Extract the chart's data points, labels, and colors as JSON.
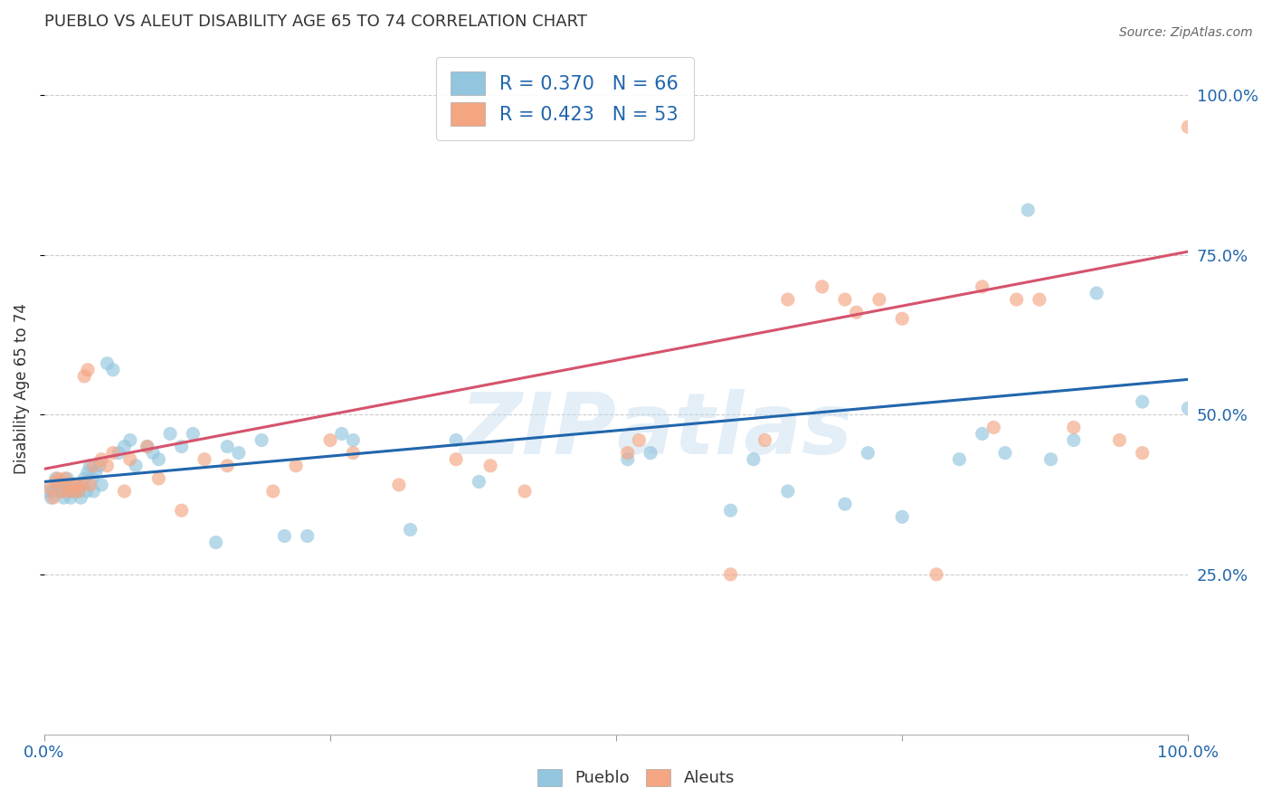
{
  "title": "PUEBLO VS ALEUT DISABILITY AGE 65 TO 74 CORRELATION CHART",
  "source": "Source: ZipAtlas.com",
  "ylabel": "Disability Age 65 to 74",
  "pueblo_R": 0.37,
  "pueblo_N": 66,
  "aleut_R": 0.423,
  "aleut_N": 53,
  "pueblo_color": "#92c5de",
  "aleut_color": "#f4a582",
  "pueblo_line_color": "#2166ac",
  "aleut_line_color": "#d6536d",
  "background_color": "#ffffff",
  "grid_color": "#cccccc",
  "watermark_color": "#c8dff0",
  "xlim": [
    0,
    1
  ],
  "ylim": [
    0,
    1.08
  ],
  "pueblo_trendline_y_start": 0.395,
  "pueblo_trendline_y_end": 0.555,
  "aleut_trendline_y_start": 0.415,
  "aleut_trendline_y_end": 0.755,
  "figsize": [
    14.06,
    8.92
  ],
  "dpi": 100,
  "pueblo_x": [
    0.003,
    0.006,
    0.008,
    0.01,
    0.012,
    0.015,
    0.017,
    0.018,
    0.02,
    0.022,
    0.023,
    0.025,
    0.026,
    0.028,
    0.03,
    0.032,
    0.033,
    0.035,
    0.037,
    0.038,
    0.04,
    0.042,
    0.043,
    0.045,
    0.048,
    0.05,
    0.055,
    0.06,
    0.065,
    0.07,
    0.075,
    0.08,
    0.09,
    0.095,
    0.1,
    0.11,
    0.12,
    0.13,
    0.15,
    0.16,
    0.17,
    0.19,
    0.21,
    0.23,
    0.26,
    0.27,
    0.32,
    0.36,
    0.38,
    0.51,
    0.53,
    0.6,
    0.62,
    0.65,
    0.7,
    0.72,
    0.75,
    0.8,
    0.82,
    0.84,
    0.86,
    0.88,
    0.9,
    0.92,
    0.96,
    1.0
  ],
  "pueblo_y": [
    0.38,
    0.37,
    0.38,
    0.4,
    0.39,
    0.38,
    0.37,
    0.39,
    0.4,
    0.38,
    0.37,
    0.38,
    0.39,
    0.38,
    0.38,
    0.37,
    0.39,
    0.4,
    0.38,
    0.41,
    0.42,
    0.4,
    0.38,
    0.41,
    0.42,
    0.39,
    0.58,
    0.57,
    0.44,
    0.45,
    0.46,
    0.42,
    0.45,
    0.44,
    0.43,
    0.47,
    0.45,
    0.47,
    0.3,
    0.45,
    0.44,
    0.46,
    0.31,
    0.31,
    0.47,
    0.46,
    0.32,
    0.46,
    0.395,
    0.43,
    0.44,
    0.35,
    0.43,
    0.38,
    0.36,
    0.44,
    0.34,
    0.43,
    0.47,
    0.44,
    0.82,
    0.43,
    0.46,
    0.69,
    0.52,
    0.51
  ],
  "aleut_x": [
    0.005,
    0.008,
    0.01,
    0.012,
    0.015,
    0.018,
    0.02,
    0.022,
    0.025,
    0.028,
    0.03,
    0.033,
    0.035,
    0.038,
    0.04,
    0.043,
    0.05,
    0.055,
    0.06,
    0.07,
    0.075,
    0.09,
    0.1,
    0.12,
    0.14,
    0.16,
    0.2,
    0.22,
    0.25,
    0.27,
    0.31,
    0.36,
    0.39,
    0.42,
    0.51,
    0.52,
    0.6,
    0.63,
    0.65,
    0.68,
    0.7,
    0.71,
    0.73,
    0.75,
    0.78,
    0.82,
    0.83,
    0.85,
    0.87,
    0.9,
    0.94,
    0.96,
    1.0
  ],
  "aleut_y": [
    0.385,
    0.37,
    0.395,
    0.4,
    0.38,
    0.4,
    0.38,
    0.39,
    0.38,
    0.39,
    0.38,
    0.39,
    0.56,
    0.57,
    0.39,
    0.42,
    0.43,
    0.42,
    0.44,
    0.38,
    0.43,
    0.45,
    0.4,
    0.35,
    0.43,
    0.42,
    0.38,
    0.42,
    0.46,
    0.44,
    0.39,
    0.43,
    0.42,
    0.38,
    0.44,
    0.46,
    0.25,
    0.46,
    0.68,
    0.7,
    0.68,
    0.66,
    0.68,
    0.65,
    0.25,
    0.7,
    0.48,
    0.68,
    0.68,
    0.48,
    0.46,
    0.44,
    0.95
  ]
}
